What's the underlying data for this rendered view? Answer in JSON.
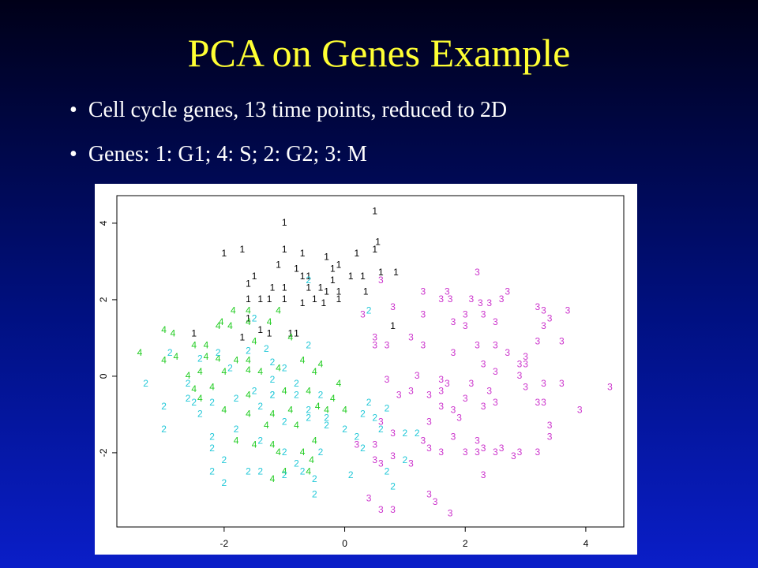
{
  "slide": {
    "title": "PCA on Genes Example",
    "bullets": [
      "Cell cycle genes, 13 time points, reduced to 2D",
      "Genes: 1: G1; 4: S; 2: G2; 3: M"
    ]
  },
  "chart_data": {
    "type": "scatter",
    "xlim": [
      -3.78,
      4.63
    ],
    "ylim": [
      -3.94,
      4.72
    ],
    "xticks": [
      -2,
      0,
      2,
      4
    ],
    "yticks": [
      -2,
      0,
      2,
      4
    ],
    "series": [
      {
        "name": "1",
        "color": "#000000",
        "x": [
          0.5,
          -1.0,
          -1.0,
          -0.7,
          -2.0,
          -1.7,
          -0.3,
          0.2,
          0.5,
          0.55,
          -0.2,
          -0.1,
          -1.1,
          -0.8,
          -0.7,
          -0.6,
          0.6,
          0.85,
          0.3,
          0.1,
          -0.2,
          -1.5,
          -1.6,
          -1.2,
          -1.0,
          -0.6,
          -0.4,
          -0.3,
          -0.1,
          0.35,
          -1.6,
          -1.4,
          -1.25,
          -1.0,
          -0.5,
          -0.7,
          -0.35,
          -0.1,
          -1.6,
          -1.4,
          -1.25,
          -0.9,
          -0.8,
          0.8,
          -2.5,
          -1.7
        ],
        "values": [
          4.3,
          4.0,
          3.3,
          3.2,
          3.2,
          3.3,
          3.1,
          3.2,
          3.3,
          3.5,
          2.8,
          2.9,
          2.9,
          2.8,
          2.6,
          2.6,
          2.7,
          2.7,
          2.6,
          2.6,
          2.5,
          2.6,
          2.4,
          2.3,
          2.3,
          2.3,
          2.3,
          2.2,
          2.2,
          2.2,
          2.0,
          2.0,
          2.0,
          2.0,
          2.0,
          1.9,
          1.9,
          2.0,
          1.5,
          1.2,
          1.1,
          1.1,
          1.1,
          1.3,
          1.1,
          1.0
        ]
      },
      {
        "name": "4",
        "color": "#22cc22",
        "x": [
          -1.85,
          -1.6,
          -1.1,
          -2.1,
          -2.05,
          -1.9,
          -1.6,
          -1.25,
          -3.0,
          -2.85,
          -3.4,
          -2.5,
          -2.3,
          -1.5,
          -0.9,
          -3.0,
          -2.8,
          -2.3,
          -2.1,
          -1.8,
          -1.6,
          -1.1,
          -0.7,
          -0.4,
          -2.6,
          -2.4,
          -2.0,
          -1.6,
          -1.4,
          -0.5,
          -2.5,
          -2.2,
          -1.6,
          -1.0,
          -0.6,
          -0.1,
          -0.2,
          -2.0,
          -1.6,
          -1.2,
          -0.9,
          -0.45,
          0.0,
          -1.3,
          -0.8,
          -0.5,
          -1.8,
          -1.5,
          -1.1,
          -0.7,
          -0.55,
          -1.0,
          -1.2,
          -0.6,
          -1.2,
          -2.4,
          -0.3
        ],
        "values": [
          1.7,
          1.7,
          1.7,
          1.3,
          1.4,
          1.3,
          1.4,
          1.4,
          1.2,
          1.1,
          0.6,
          0.8,
          0.8,
          0.9,
          1.0,
          0.4,
          0.5,
          0.5,
          0.45,
          0.4,
          0.4,
          0.2,
          0.4,
          0.3,
          0.0,
          0.1,
          0.1,
          0.15,
          0.1,
          0.1,
          -0.35,
          -0.3,
          -0.5,
          -0.4,
          -0.4,
          -0.2,
          -0.6,
          -0.9,
          -1.0,
          -1.0,
          -0.9,
          -0.8,
          -0.9,
          -1.3,
          -1.3,
          -1.7,
          -1.7,
          -1.8,
          -2.0,
          -2.0,
          -2.2,
          -2.5,
          -2.7,
          -2.5,
          -1.8,
          -0.6,
          -0.9
        ]
      },
      {
        "name": "2",
        "color": "#22c8d8",
        "x": [
          -0.6,
          -1.5,
          0.4,
          -0.6,
          -2.9,
          -2.4,
          -2.1,
          -1.6,
          -1.3,
          -1.9,
          -1.2,
          -1.0,
          -3.3,
          -2.6,
          -1.2,
          -0.8,
          -1.5,
          -2.6,
          -2.2,
          -1.8,
          -1.2,
          -0.4,
          -0.8,
          -3.0,
          -2.5,
          -1.4,
          -0.6,
          0.4,
          0.7,
          -2.4,
          -1.0,
          -0.6,
          0.3,
          -0.3,
          0.5,
          -3.0,
          -1.8,
          -0.3,
          0.0,
          0.6,
          1.2,
          -1.4,
          0.2,
          -2.2,
          -2.2,
          -2.0,
          -1.0,
          -0.4,
          0.3,
          1.0,
          -2.2,
          -0.8,
          -0.7,
          0.1,
          -1.6,
          -1.4,
          -2.0,
          -1.0,
          -0.5,
          0.7,
          1.0,
          -0.5,
          0.8,
          -1.2
        ],
        "values": [
          2.5,
          1.5,
          1.7,
          0.8,
          0.6,
          0.45,
          0.6,
          0.65,
          0.7,
          0.2,
          0.35,
          0.2,
          -0.2,
          -0.2,
          -0.1,
          -0.2,
          -0.4,
          -0.6,
          -0.7,
          -0.6,
          -0.5,
          -0.5,
          -0.5,
          -0.8,
          -0.7,
          -0.8,
          -0.9,
          -0.7,
          -0.85,
          -1.0,
          -1.2,
          -1.1,
          -1.0,
          -1.1,
          -1.1,
          -1.4,
          -1.4,
          -1.3,
          -1.4,
          -1.4,
          -1.5,
          -1.7,
          -1.6,
          -1.6,
          -1.9,
          -2.2,
          -2.0,
          -2.0,
          -1.9,
          -1.5,
          -2.5,
          -2.3,
          -2.5,
          -2.6,
          -2.5,
          -2.5,
          -2.8,
          -2.6,
          -2.7,
          -2.5,
          -2.2,
          -3.1,
          -2.9,
          -0.5
        ]
      },
      {
        "name": "3",
        "color": "#cc33cc",
        "x": [
          2.2,
          0.6,
          1.3,
          1.7,
          2.7,
          1.6,
          1.75,
          2.1,
          2.25,
          2.4,
          2.6,
          3.2,
          3.3,
          3.7,
          0.8,
          0.3,
          1.3,
          1.8,
          2.0,
          2.3,
          2.0,
          2.5,
          3.4,
          3.3,
          0.5,
          1.1,
          1.3,
          2.2,
          2.5,
          3.2,
          3.6,
          0.5,
          0.7,
          1.8,
          2.7,
          3.0,
          2.3,
          2.9,
          3.0,
          2.5,
          1.2,
          2.9,
          0.7,
          1.6,
          2.1,
          3.3,
          3.6,
          4.4,
          1.7,
          1.1,
          1.6,
          2.4,
          3.0,
          0.9,
          1.4,
          2.0,
          2.5,
          3.2,
          3.3,
          1.6,
          1.8,
          2.3,
          3.9,
          0.6,
          1.4,
          1.9,
          3.4,
          0.8,
          1.3,
          1.8,
          2.2,
          3.4,
          0.5,
          0.2,
          1.4,
          2.3,
          2.5,
          2.6,
          3.2,
          2.2,
          2.9,
          0.8,
          1.6,
          0.6,
          2.0,
          2.8,
          0.5,
          1.1,
          2.3,
          1.4,
          1.5,
          0.4,
          0.8,
          0.6,
          1.75
        ],
        "values": [
          2.7,
          2.5,
          2.2,
          2.2,
          2.2,
          2.0,
          2.0,
          2.0,
          1.9,
          1.9,
          2.0,
          1.8,
          1.7,
          1.7,
          1.8,
          1.6,
          1.6,
          1.4,
          1.6,
          1.6,
          1.3,
          1.4,
          1.5,
          1.3,
          1.0,
          1.0,
          0.8,
          0.8,
          0.8,
          0.9,
          0.9,
          0.8,
          0.8,
          0.6,
          0.6,
          0.5,
          0.3,
          0.3,
          0.3,
          0.1,
          0.0,
          0.0,
          -0.1,
          -0.1,
          -0.2,
          -0.2,
          -0.2,
          -0.3,
          -0.2,
          -0.4,
          -0.4,
          -0.4,
          -0.3,
          -0.5,
          -0.5,
          -0.6,
          -0.7,
          -0.7,
          -0.7,
          -0.8,
          -0.9,
          -0.8,
          -0.9,
          -1.2,
          -1.2,
          -1.1,
          -1.3,
          -1.5,
          -1.7,
          -1.6,
          -1.7,
          -1.6,
          -1.8,
          -1.8,
          -1.9,
          -1.9,
          -2.0,
          -1.9,
          -2.0,
          -2.0,
          -2.0,
          -2.1,
          -2.0,
          -2.3,
          -2.0,
          -2.1,
          -2.2,
          -2.3,
          -2.6,
          -3.1,
          -3.3,
          -3.2,
          -3.5,
          -3.5,
          -3.6
        ]
      }
    ]
  }
}
